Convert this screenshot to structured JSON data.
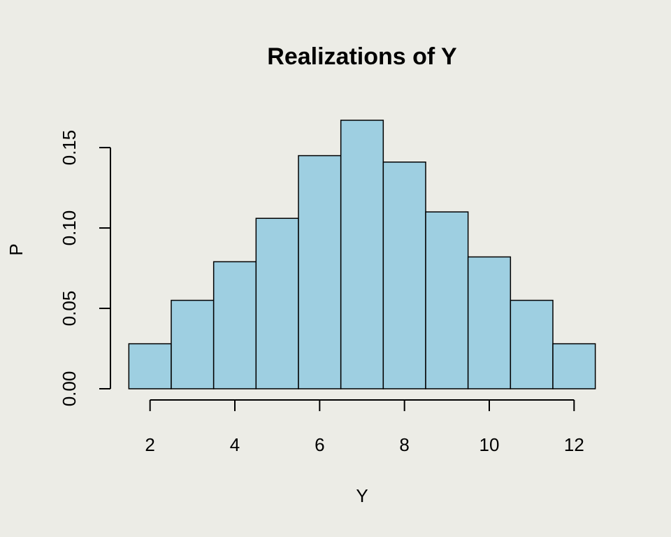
{
  "chart_data": {
    "type": "bar",
    "title": "Realizations of Y",
    "xlabel": "Y",
    "ylabel": "P",
    "bins": [
      {
        "x": 2,
        "p": 0.028
      },
      {
        "x": 3,
        "p": 0.055
      },
      {
        "x": 4,
        "p": 0.079
      },
      {
        "x": 5,
        "p": 0.106
      },
      {
        "x": 6,
        "p": 0.145
      },
      {
        "x": 7,
        "p": 0.167
      },
      {
        "x": 8,
        "p": 0.141
      },
      {
        "x": 9,
        "p": 0.11
      },
      {
        "x": 10,
        "p": 0.082
      },
      {
        "x": 11,
        "p": 0.055
      },
      {
        "x": 12,
        "p": 0.028
      }
    ],
    "bin_width": 1,
    "x_ticks": [
      "2",
      "4",
      "6",
      "8",
      "10",
      "12"
    ],
    "y_ticks": [
      "0.00",
      "0.05",
      "0.10",
      "0.15"
    ],
    "xlim": [
      1.0,
      13.0
    ],
    "ylim": [
      0,
      0.167
    ],
    "bar_color": "#9ECFE1",
    "border_color": "#000000",
    "background_color": "#ECECE6",
    "grid": false,
    "legend": "none"
  }
}
